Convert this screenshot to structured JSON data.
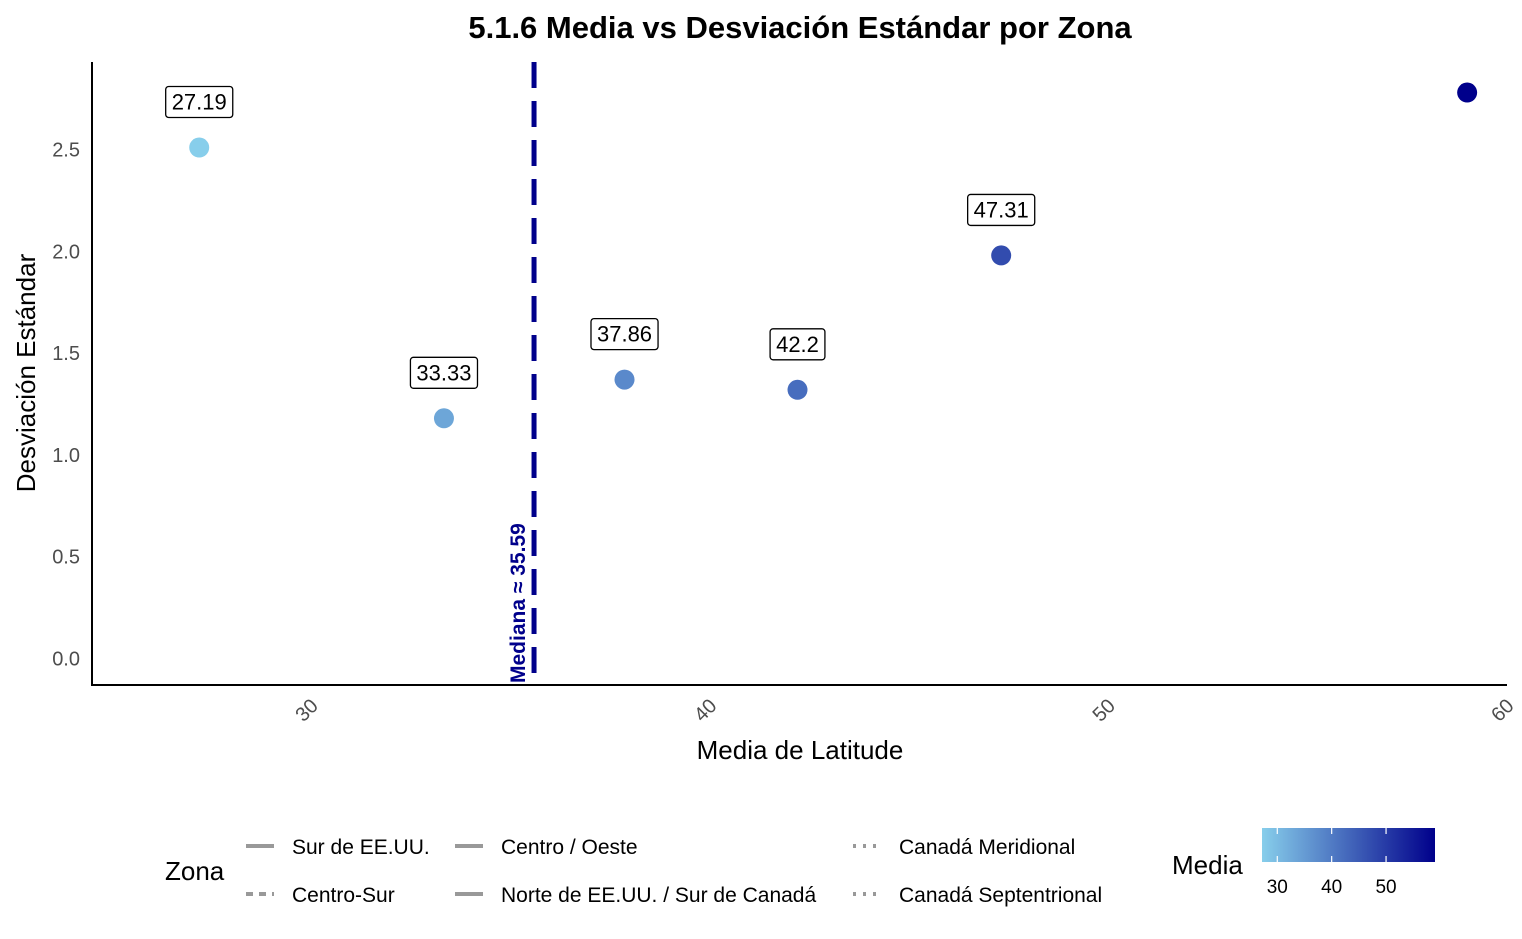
{
  "chart_data": {
    "type": "scatter",
    "title": "5.1.6 Media vs Desviación Estándar por Zona",
    "xlabel": "Media de Latitude",
    "ylabel": "Desviación Estándar",
    "xlim": [
      24.5,
      60.0
    ],
    "ylim": [
      -0.13,
      2.93
    ],
    "xticks": [
      30,
      40,
      50,
      60
    ],
    "yticks": [
      0.0,
      0.5,
      1.0,
      1.5,
      2.0,
      2.5
    ],
    "ytick_labels": [
      "0.0",
      "0.5",
      "1.0",
      "1.5",
      "2.0",
      "2.5"
    ],
    "grid": false,
    "points": [
      {
        "x": 27.19,
        "y": 2.51,
        "label": "27.19",
        "zona": "Sur de EE.UU."
      },
      {
        "x": 33.33,
        "y": 1.18,
        "label": "33.33",
        "zona": "Centro-Sur"
      },
      {
        "x": 37.86,
        "y": 1.37,
        "label": "37.86",
        "zona": "Centro / Oeste"
      },
      {
        "x": 42.2,
        "y": 1.32,
        "label": "42.2",
        "zona": "Norte de EE.UU. / Sur de Canadá"
      },
      {
        "x": 47.31,
        "y": 1.98,
        "label": "47.31",
        "zona": "Canadá Meridional"
      },
      {
        "x": 59.0,
        "y": 2.78,
        "label": "",
        "zona": "Canadá Septentrional"
      }
    ],
    "median_line": {
      "x": 35.59,
      "label": "Mediana ≈ 35.59",
      "color": "#00008b",
      "style": "dashed"
    },
    "color_scale": {
      "low": "#87ceeb",
      "high": "#00008b",
      "min": 27.19,
      "max": 59.0,
      "ticks": [
        30,
        40,
        50
      ]
    }
  },
  "legend": {
    "zona_title": "Zona",
    "zona_items": [
      {
        "label": "Sur de EE.UU.",
        "dash": "solid"
      },
      {
        "label": "Centro-Sur",
        "dash": "dashed"
      },
      {
        "label": "Centro / Oeste",
        "dash": "solid"
      },
      {
        "label": "Norte de EE.UU. / Sur de Canadá",
        "dash": "solid"
      },
      {
        "label": "Canadá Meridional",
        "dash": "dotted"
      },
      {
        "label": "Canadá Septentrional",
        "dash": "dotted"
      }
    ],
    "media_title": "Media"
  }
}
